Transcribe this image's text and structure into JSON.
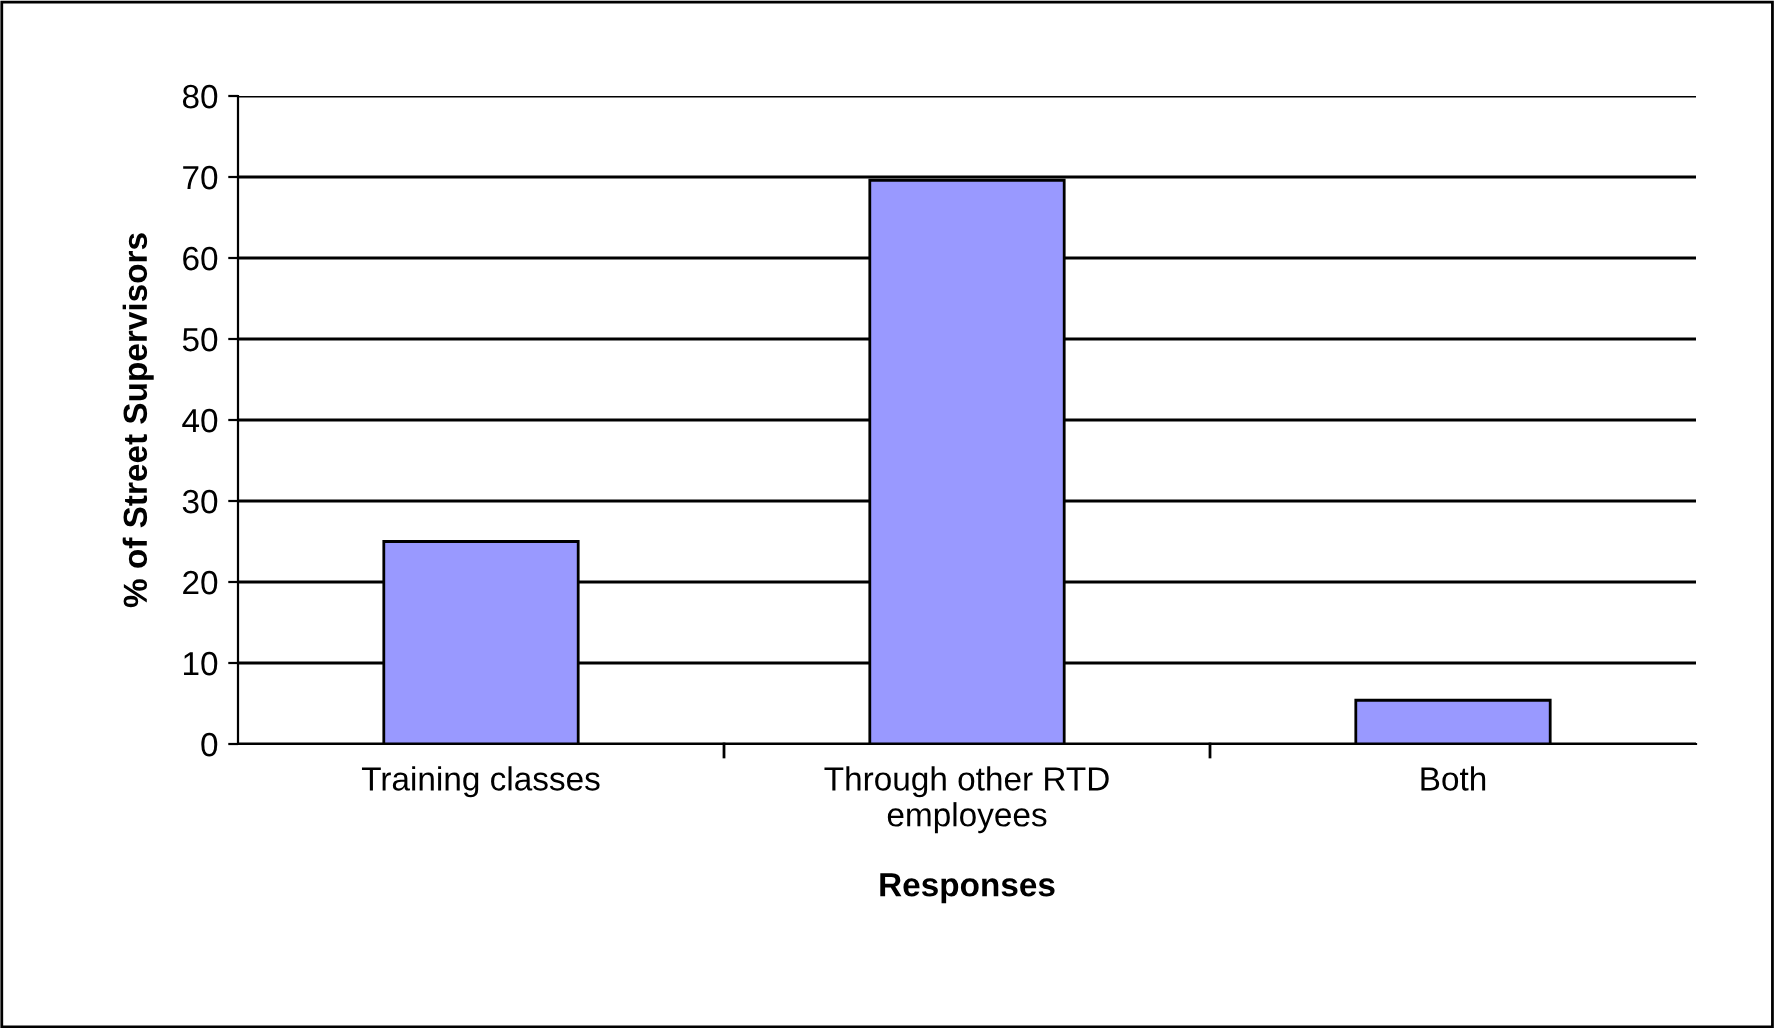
{
  "chart_data": {
    "type": "bar",
    "xlabel": "Responses",
    "ylabel": "% of Street Supervisors",
    "categories": [
      "Training classes",
      "Through other RTD\nemployees",
      "Both"
    ],
    "values": [
      25,
      69.6,
      5.4
    ],
    "color": "#9999ff",
    "ylim": [
      0,
      80
    ],
    "yticks": [
      0,
      10,
      20,
      30,
      40,
      50,
      60,
      70,
      80
    ],
    "grid": "y",
    "legend": false
  }
}
